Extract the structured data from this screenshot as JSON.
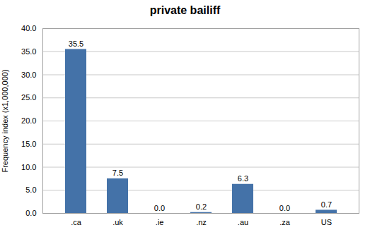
{
  "chart_data": {
    "type": "bar",
    "title": "private bailiff",
    "categories": [
      ".ca",
      ".uk",
      ".ie",
      ".nz",
      ".au",
      ".za",
      "US"
    ],
    "values": [
      35.5,
      7.5,
      0.0,
      0.2,
      6.3,
      0.0,
      0.7
    ],
    "value_labels": [
      "35.5",
      "7.5",
      "0.0",
      "0.2",
      "6.3",
      "0.0",
      "0.7"
    ],
    "data_labels": true,
    "color": "#4472a8",
    "ylabel": "Frequency index (x1,000,000)",
    "ylim": [
      0,
      40.0
    ],
    "yticks": [
      {
        "value": 0,
        "label": "0.0"
      },
      {
        "value": 5,
        "label": "5.0"
      },
      {
        "value": 10,
        "label": "10.0"
      },
      {
        "value": 15,
        "label": "15.0"
      },
      {
        "value": 20,
        "label": "20.0"
      },
      {
        "value": 25,
        "label": "25.0"
      },
      {
        "value": 30,
        "label": "30.0"
      },
      {
        "value": 35,
        "label": "35.0"
      },
      {
        "value": 40,
        "label": "40.0"
      }
    ],
    "grid": true
  }
}
